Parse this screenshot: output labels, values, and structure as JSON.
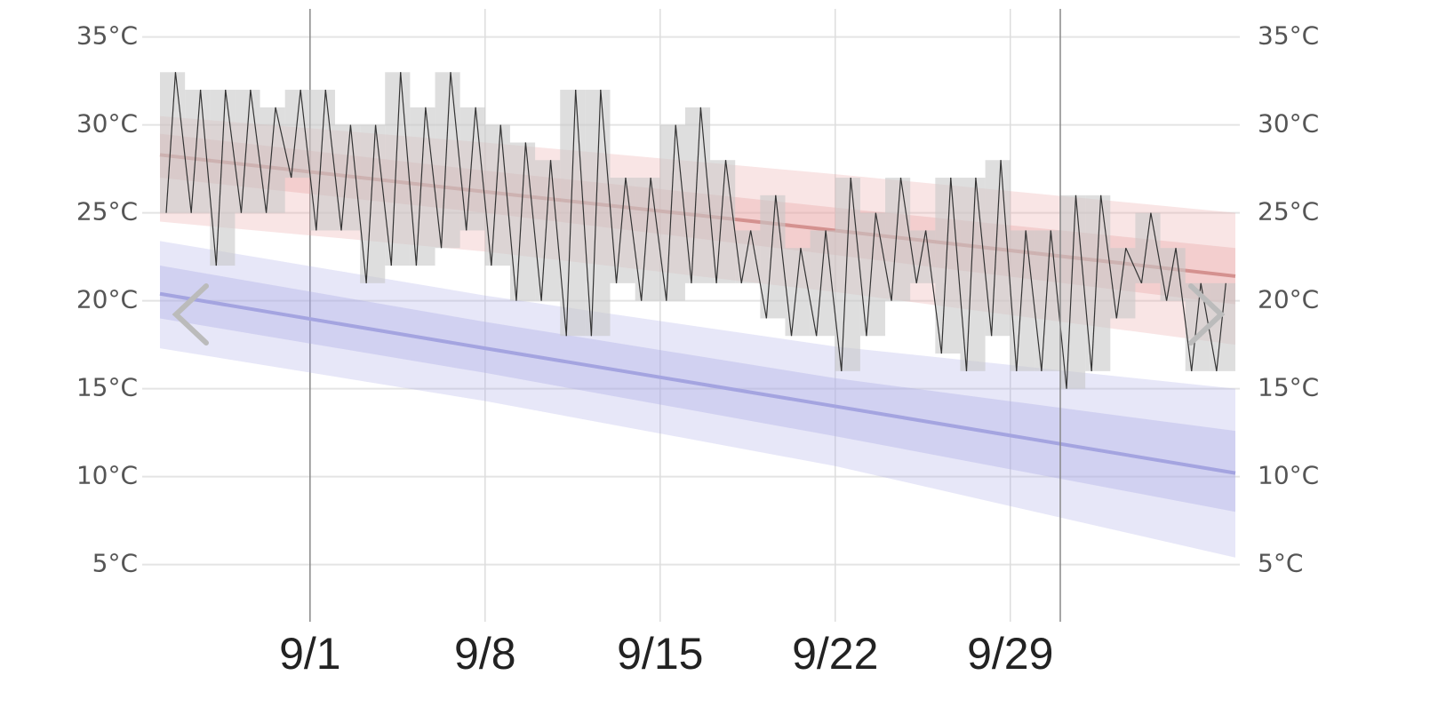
{
  "chart_data": {
    "type": "line",
    "xlim": [
      "8/26",
      "10/8"
    ],
    "xticks": [
      "9/1",
      "9/8",
      "9/15",
      "9/22",
      "9/29"
    ],
    "ylim": [
      2,
      36.6
    ],
    "yticks": [
      {
        "value": 5,
        "label": "5°C"
      },
      {
        "value": 10,
        "label": "10°C"
      },
      {
        "value": 15,
        "label": "15°C"
      },
      {
        "value": 20,
        "label": "20°C"
      },
      {
        "value": 25,
        "label": "25°C"
      },
      {
        "value": 30,
        "label": "30°C"
      },
      {
        "value": 35,
        "label": "35°C"
      }
    ],
    "grid": true,
    "normals": {
      "x": [
        "8/26",
        "9/8",
        "9/22",
        "10/8"
      ],
      "series": [
        {
          "color": "#d4918f",
          "band_color": "#e8a3a3",
          "values": [
            28.3,
            26.2,
            24.0,
            21.4
          ],
          "p10": [
            24.5,
            22.8,
            20.5,
            17.5
          ],
          "p25": [
            27.0,
            25.0,
            22.6,
            19.8
          ],
          "p75": [
            29.5,
            27.4,
            25.3,
            23.0
          ],
          "p90": [
            30.5,
            29.0,
            27.2,
            25.0
          ]
        },
        {
          "color": "#a4a4e0",
          "band_color": "#aaaae6",
          "values": [
            20.4,
            17.3,
            14.0,
            10.2
          ],
          "p10": [
            17.3,
            14.3,
            10.6,
            5.4
          ],
          "p25": [
            19.0,
            15.9,
            12.3,
            8.0
          ],
          "p75": [
            22.0,
            18.8,
            15.6,
            12.6
          ],
          "p90": [
            23.4,
            20.3,
            17.4,
            15.0
          ]
        }
      ]
    },
    "observed": {
      "color": "#333333",
      "box_color": "#c8c8c8",
      "x": [
        "8/26",
        "8/27",
        "8/28",
        "8/29",
        "8/30",
        "8/31",
        "9/1",
        "9/2",
        "9/3",
        "9/4",
        "9/5",
        "9/6",
        "9/7",
        "9/8",
        "9/9",
        "9/10",
        "9/11",
        "9/12",
        "9/13",
        "9/14",
        "9/15",
        "9/16",
        "9/17",
        "9/18",
        "9/19",
        "9/20",
        "9/21",
        "9/22",
        "9/23",
        "9/24",
        "9/25",
        "9/26",
        "9/27",
        "9/28",
        "9/29",
        "9/30",
        "10/1",
        "10/2",
        "10/3",
        "10/4",
        "10/5",
        "10/6",
        "10/7"
      ],
      "high": [
        33,
        32,
        32,
        32,
        31,
        32,
        32,
        30,
        30,
        33,
        31,
        33,
        31,
        30,
        29,
        28,
        32,
        32,
        27,
        27,
        30,
        31,
        28,
        24,
        26,
        23,
        24,
        27,
        25,
        27,
        24,
        27,
        27,
        28,
        24,
        24,
        26,
        26,
        23,
        25,
        23,
        21,
        21
      ],
      "low": [
        25,
        25,
        22,
        25,
        25,
        27,
        24,
        24,
        21,
        22,
        22,
        23,
        24,
        22,
        20,
        20,
        18,
        18,
        21,
        20,
        20,
        21,
        21,
        21,
        19,
        18,
        18,
        16,
        18,
        20,
        21,
        17,
        16,
        18,
        16,
        16,
        15,
        16,
        19,
        21,
        20,
        16,
        16
      ]
    }
  }
}
